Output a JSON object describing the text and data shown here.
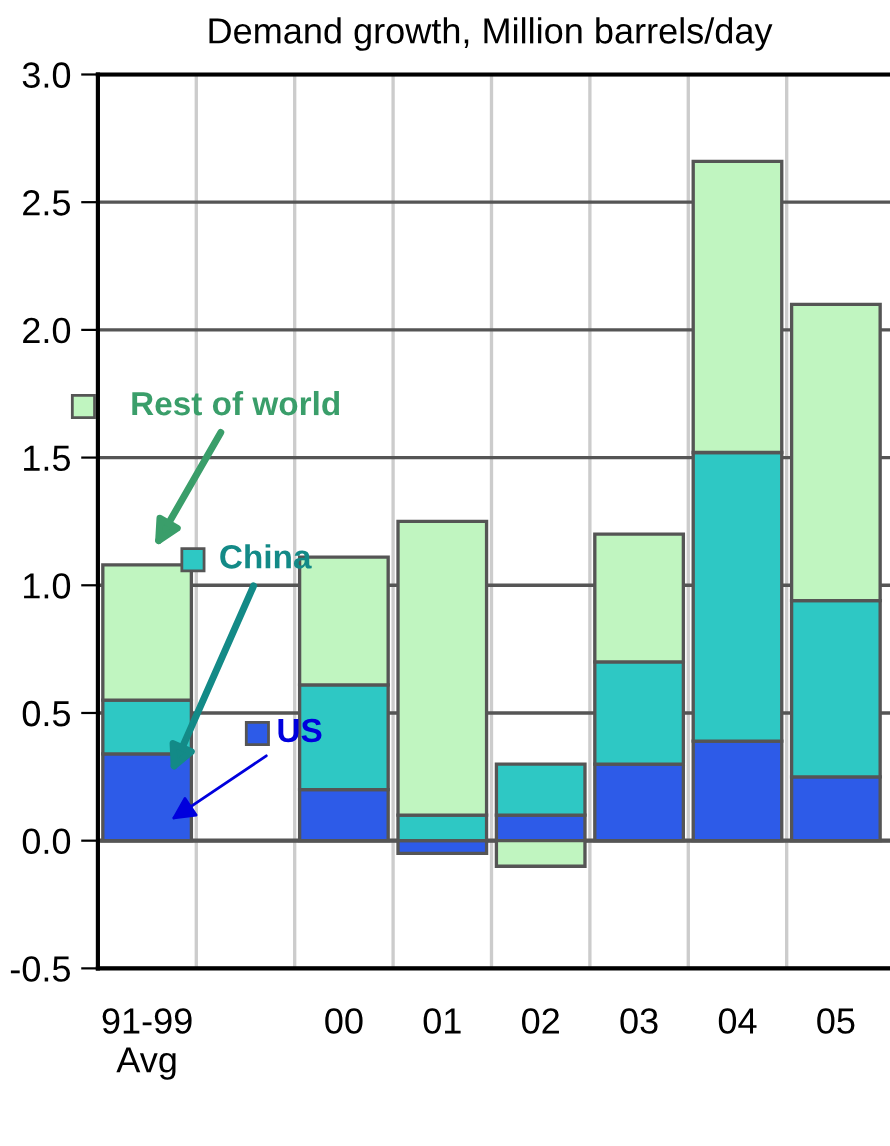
{
  "chart_data": {
    "type": "bar",
    "title": "Demand growth, Million barrels/day",
    "stacked": true,
    "categories": [
      "91-99\nAvg",
      null,
      "00",
      "01",
      "02",
      "03",
      "04",
      "05"
    ],
    "series": [
      {
        "name": "US",
        "color": "#2d5be8",
        "values": [
          0.34,
          null,
          0.2,
          -0.05,
          0.1,
          0.3,
          0.39,
          0.25
        ]
      },
      {
        "name": "China",
        "color": "#2ec8c4",
        "values": [
          0.21,
          null,
          0.41,
          0.1,
          0.2,
          0.4,
          1.13,
          0.69
        ]
      },
      {
        "name": "Rest of world",
        "color": "#c0f5c0",
        "values": [
          0.53,
          null,
          0.5,
          1.15,
          -0.1,
          0.5,
          1.14,
          1.16
        ]
      }
    ],
    "ylim": [
      -0.5,
      3.0
    ],
    "yticks": [
      {
        "value": -0.5,
        "label": "-0.5"
      },
      {
        "value": 0,
        "label": "0.0"
      },
      0.5,
      {
        "value": 1,
        "label": "1.0"
      },
      1.5,
      {
        "value": 2,
        "label": "2.0"
      },
      2.5,
      {
        "value": 3,
        "label": "3.0"
      }
    ],
    "grid": true,
    "legend": "left"
  }
}
